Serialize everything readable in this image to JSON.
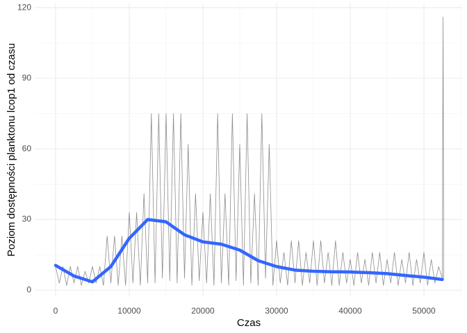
{
  "chart_data": {
    "type": "line",
    "xlabel": "Czas",
    "ylabel": "Poziom dostępności planktonu lcop1 od czasu",
    "xlim": [
      -2830,
      55190
    ],
    "ylim": [
      -2.9,
      121.8
    ],
    "xticks": [
      0,
      10000,
      20000,
      30000,
      40000,
      50000
    ],
    "yticks": [
      0,
      30,
      60,
      90,
      120
    ],
    "xminorticks": [
      5000,
      15000,
      25000,
      35000,
      45000,
      55000
    ],
    "yminorticks": [
      15,
      45,
      75,
      105
    ],
    "grid": true,
    "series": [
      {
        "color": "#000000",
        "opacity": 0.45,
        "width": 0.8,
        "x": [
          0,
          500,
          1000,
          1500,
          2000,
          2500,
          3000,
          3500,
          4000,
          4500,
          5000,
          5500,
          6000,
          6500,
          7000,
          7500,
          8000,
          8500,
          9000,
          9500,
          10000,
          10500,
          11000,
          11500,
          12000,
          12500,
          13000,
          13500,
          14000,
          14500,
          15000,
          15500,
          16000,
          16500,
          17000,
          17500,
          18000,
          18500,
          19000,
          19500,
          20000,
          20500,
          21000,
          21500,
          22000,
          22500,
          23000,
          23500,
          24000,
          24500,
          25000,
          25500,
          26000,
          26500,
          27000,
          27500,
          28000,
          28500,
          29000,
          29500,
          30000,
          30500,
          31000,
          31500,
          32000,
          32500,
          33000,
          33500,
          34000,
          34500,
          35000,
          35500,
          36000,
          36500,
          37000,
          37500,
          38000,
          38500,
          39000,
          39500,
          40000,
          40500,
          41000,
          41500,
          42000,
          42500,
          43000,
          43500,
          44000,
          44500,
          45000,
          45500,
          46000,
          46500,
          47000,
          47500,
          48000,
          48500,
          49000,
          49500,
          50000,
          50500,
          51000,
          51500,
          52000,
          52500,
          52600,
          52700
        ],
        "values": [
          10,
          3,
          10,
          2,
          10,
          3,
          10,
          2,
          8,
          3,
          10,
          3,
          10,
          2,
          23,
          3,
          23,
          2,
          23,
          2,
          33,
          3,
          33,
          2,
          41,
          3,
          75,
          3,
          75,
          5,
          75,
          4,
          75,
          3,
          75,
          5,
          62,
          2,
          41,
          4,
          33,
          3,
          41,
          2,
          75,
          3,
          41,
          2,
          75,
          4,
          62,
          2,
          75,
          3,
          41,
          2,
          75,
          5,
          62,
          2,
          21,
          3,
          16,
          2,
          21,
          3,
          21,
          2,
          16,
          3,
          21,
          2,
          21,
          3,
          16,
          2,
          21,
          2,
          16,
          3,
          13,
          2,
          16,
          3,
          13,
          2,
          16,
          3,
          16,
          2,
          13,
          3,
          16,
          2,
          13,
          3,
          16,
          2,
          13,
          3,
          16,
          2,
          13,
          3,
          10,
          5,
          116,
          5
        ]
      },
      {
        "color": "#3366FF",
        "opacity": 1,
        "width": 4.5,
        "x": [
          0,
          2500,
          5000,
          7500,
          10000,
          12500,
          15000,
          17500,
          20000,
          22500,
          25000,
          27500,
          30000,
          32500,
          35000,
          37500,
          40000,
          42500,
          45000,
          47500,
          50000,
          52500
        ],
        "values": [
          10.5,
          6,
          3.5,
          10,
          22,
          30,
          29,
          23.5,
          20.5,
          19.5,
          17,
          12.5,
          10,
          8.5,
          8,
          7.8,
          7.7,
          7.4,
          7,
          6.2,
          5.5,
          4.5
        ]
      }
    ]
  }
}
